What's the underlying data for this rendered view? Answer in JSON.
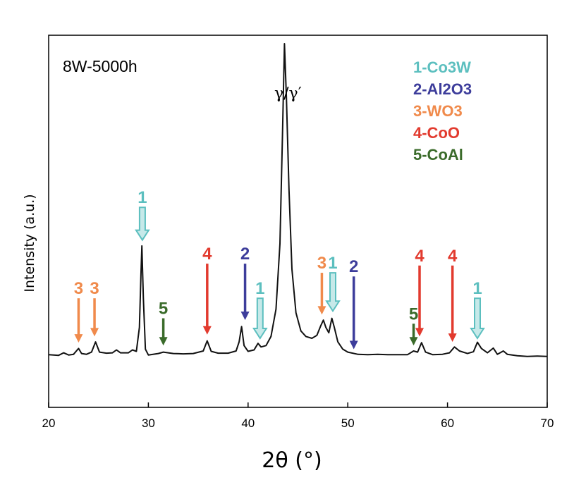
{
  "chart_data": {
    "type": "line",
    "title": "8W-5000h",
    "xlabel": "2θ (°)",
    "ylabel": "Intensity (a.u.)",
    "xlim": [
      20,
      70
    ],
    "ylim": [
      0,
      100
    ],
    "xticks": [
      20,
      30,
      40,
      50,
      60,
      70
    ],
    "grid": false,
    "legend_position": "top-right",
    "series": [
      {
        "values": [
          [
            20.0,
            14.5
          ],
          [
            21.0,
            14.3
          ],
          [
            21.5,
            15.0
          ],
          [
            22.0,
            14.4
          ],
          [
            22.5,
            14.6
          ],
          [
            23.0,
            16.2
          ],
          [
            23.3,
            14.8
          ],
          [
            23.8,
            14.6
          ],
          [
            24.3,
            15.2
          ],
          [
            24.7,
            18.0
          ],
          [
            25.1,
            15.2
          ],
          [
            25.8,
            14.9
          ],
          [
            26.4,
            15.0
          ],
          [
            26.8,
            15.8
          ],
          [
            27.2,
            15.0
          ],
          [
            28.0,
            15.0
          ],
          [
            28.4,
            15.8
          ],
          [
            28.8,
            15.4
          ],
          [
            29.1,
            22.0
          ],
          [
            29.25,
            36.0
          ],
          [
            29.35,
            44.4
          ],
          [
            29.5,
            30.0
          ],
          [
            29.7,
            16.0
          ],
          [
            30.0,
            14.4
          ],
          [
            31.0,
            14.8
          ],
          [
            31.5,
            15.2
          ],
          [
            32.5,
            14.8
          ],
          [
            33.5,
            14.7
          ],
          [
            34.5,
            14.8
          ],
          [
            35.5,
            15.5
          ],
          [
            35.9,
            18.3
          ],
          [
            36.3,
            15.4
          ],
          [
            37.0,
            14.9
          ],
          [
            38.0,
            14.9
          ],
          [
            38.8,
            15.5
          ],
          [
            39.1,
            18.0
          ],
          [
            39.35,
            22.2
          ],
          [
            39.6,
            17.0
          ],
          [
            40.0,
            15.4
          ],
          [
            40.6,
            15.8
          ],
          [
            41.0,
            17.6
          ],
          [
            41.3,
            16.6
          ],
          [
            41.8,
            17.0
          ],
          [
            42.3,
            19.5
          ],
          [
            42.8,
            27.0
          ],
          [
            43.2,
            45.0
          ],
          [
            43.45,
            75.0
          ],
          [
            43.65,
            100.0
          ],
          [
            43.85,
            85.0
          ],
          [
            44.1,
            60.0
          ],
          [
            44.4,
            38.0
          ],
          [
            44.8,
            26.0
          ],
          [
            45.3,
            21.0
          ],
          [
            45.8,
            19.5
          ],
          [
            46.4,
            19.0
          ],
          [
            46.9,
            19.8
          ],
          [
            47.3,
            22.5
          ],
          [
            47.55,
            24.0
          ],
          [
            47.8,
            22.0
          ],
          [
            48.1,
            20.5
          ],
          [
            48.4,
            24.5
          ],
          [
            48.65,
            22.0
          ],
          [
            49.0,
            18.0
          ],
          [
            49.5,
            16.0
          ],
          [
            50.0,
            15.2
          ],
          [
            51.0,
            14.6
          ],
          [
            52.0,
            14.5
          ],
          [
            53.0,
            14.6
          ],
          [
            54.0,
            14.5
          ],
          [
            55.0,
            14.5
          ],
          [
            56.0,
            14.5
          ],
          [
            56.6,
            15.5
          ],
          [
            57.0,
            15.2
          ],
          [
            57.4,
            17.8
          ],
          [
            57.8,
            15.2
          ],
          [
            58.5,
            14.5
          ],
          [
            59.5,
            14.6
          ],
          [
            60.2,
            15.0
          ],
          [
            60.7,
            16.6
          ],
          [
            61.2,
            15.5
          ],
          [
            62.0,
            14.8
          ],
          [
            62.6,
            15.3
          ],
          [
            63.0,
            17.9
          ],
          [
            63.4,
            16.2
          ],
          [
            64.0,
            15.0
          ],
          [
            64.6,
            16.3
          ],
          [
            65.0,
            14.6
          ],
          [
            65.6,
            15.5
          ],
          [
            66.0,
            14.6
          ],
          [
            67.0,
            14.2
          ],
          [
            68.0,
            14.0
          ],
          [
            69.0,
            14.1
          ],
          [
            70.0,
            14.0
          ]
        ]
      }
    ],
    "peak_annotation": {
      "text": "γ/γ′",
      "x": 44.0,
      "y": 85
    },
    "legend": [
      {
        "num": "1",
        "label": "1-Co3W",
        "color": "#5cbfbf"
      },
      {
        "num": "2",
        "label": "2-Al2O3",
        "color": "#3d3d9b"
      },
      {
        "num": "3",
        "label": "3-WO3",
        "color": "#f08a4b"
      },
      {
        "num": "4",
        "label": "4-CoO",
        "color": "#e23a2e"
      },
      {
        "num": "5",
        "label": "5-CoAl",
        "color": "#3a6b2a"
      }
    ],
    "markers": [
      {
        "label": "3",
        "phase": 3,
        "x": 23.0,
        "y_top": 30,
        "y_tip": 17.8
      },
      {
        "label": "3",
        "phase": 3,
        "x": 24.6,
        "y_top": 30,
        "y_tip": 19.5
      },
      {
        "label": "1",
        "phase": 1,
        "x": 29.4,
        "y_top": 55,
        "y_tip": 46.0
      },
      {
        "label": "5",
        "phase": 5,
        "x": 31.5,
        "y_top": 24.5,
        "y_tip": 17.0
      },
      {
        "label": "4",
        "phase": 4,
        "x": 35.9,
        "y_top": 39.5,
        "y_tip": 20.0
      },
      {
        "label": "2",
        "phase": 2,
        "x": 39.7,
        "y_top": 39.5,
        "y_tip": 24.0
      },
      {
        "label": "1",
        "phase": 1,
        "x": 41.2,
        "y_top": 30,
        "y_tip": 19.0
      },
      {
        "label": "3",
        "phase": 3,
        "x": 47.4,
        "y_top": 37,
        "y_tip": 25.5
      },
      {
        "label": "1",
        "phase": 1,
        "x": 48.5,
        "y_top": 37,
        "y_tip": 26.5
      },
      {
        "label": "2",
        "phase": 2,
        "x": 50.6,
        "y_top": 36,
        "y_tip": 16.0
      },
      {
        "label": "5",
        "phase": 5,
        "x": 56.6,
        "y_top": 23,
        "y_tip": 17.0
      },
      {
        "label": "4",
        "phase": 4,
        "x": 57.2,
        "y_top": 39,
        "y_tip": 19.5
      },
      {
        "label": "4",
        "phase": 4,
        "x": 60.5,
        "y_top": 39,
        "y_tip": 18.0
      },
      {
        "label": "1",
        "phase": 1,
        "x": 63.0,
        "y_top": 30,
        "y_tip": 19.0
      }
    ]
  }
}
